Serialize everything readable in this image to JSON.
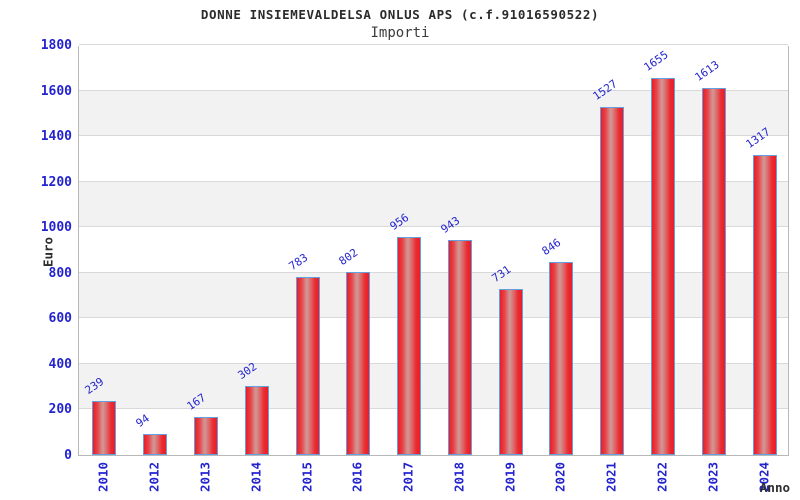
{
  "header": {
    "title": "DONNE INSIEMEVALDELSA ONLUS APS (c.f.91016590522)",
    "subtitle": "Importi"
  },
  "chart_data": {
    "type": "bar",
    "title": "DONNE INSIEMEVALDELSA ONLUS APS (c.f.91016590522)",
    "subtitle": "Importi",
    "xlabel": "Anno",
    "ylabel": "Euro",
    "categories": [
      "2010",
      "2012",
      "2013",
      "2014",
      "2015",
      "2016",
      "2017",
      "2018",
      "2019",
      "2020",
      "2021",
      "2022",
      "2023",
      "2024"
    ],
    "values": [
      239,
      94,
      167,
      302,
      783,
      802,
      956,
      943,
      731,
      846,
      1527,
      1655,
      1613,
      1317
    ],
    "ylim": [
      0,
      1800
    ],
    "ytick_step": 200,
    "yticks": [
      0,
      200,
      400,
      600,
      800,
      1000,
      1200,
      1400,
      1600,
      1800
    ],
    "grid": true,
    "legend_position": "none",
    "colors": {
      "bar_fill": "#ed1c24",
      "bar_highlight": "#d09695",
      "bar_border": "#64a0e0",
      "tick_text": "#2424cf",
      "value_label_text": "#2424cf",
      "band_gray": "#f2f2f2",
      "band_white": "#ffffff",
      "gridline": "#d9d9d9",
      "plot_border": "#b8b8b8",
      "title_text": "#2b2b2b",
      "axis_label_text": "#2e2e2e"
    }
  }
}
